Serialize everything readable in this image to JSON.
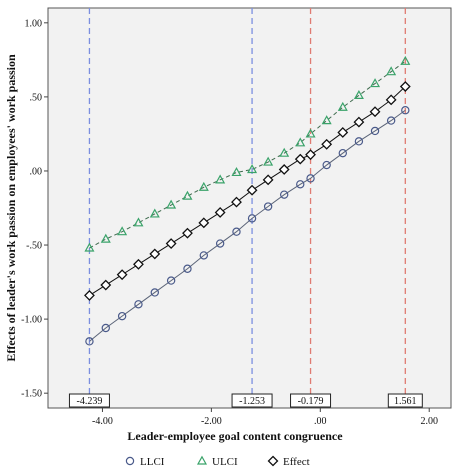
{
  "chart_data": {
    "type": "line",
    "xlabel": "Leader-employee goal content congruence",
    "ylabel": "Effects of leader's work passion on employees' work passion",
    "xlim": [
      -5.0,
      2.4
    ],
    "ylim": [
      -1.6,
      1.1
    ],
    "x_ticks": [
      -4.0,
      -2.0,
      0.0,
      2.0
    ],
    "x_tick_labels": [
      "-4.00",
      "-2.00",
      ".00",
      "2.00"
    ],
    "y_ticks": [
      1.0,
      0.5,
      0.0,
      -0.5,
      -1.0,
      -1.5
    ],
    "y_tick_labels": [
      "1.00",
      ".50",
      ".00",
      "-.50",
      "-1.00",
      "-1.50"
    ],
    "grid": false,
    "legend_position": "bottom",
    "x": [
      -4.239,
      -3.939,
      -3.639,
      -3.339,
      -3.039,
      -2.739,
      -2.439,
      -2.139,
      -1.839,
      -1.539,
      -1.253,
      -0.958,
      -0.663,
      -0.368,
      -0.179,
      0.117,
      0.413,
      0.709,
      1.005,
      1.301,
      1.561
    ],
    "series": [
      {
        "name": "LLCI",
        "marker": "circle",
        "color": "#4a5a8a",
        "line_color": "#5b6478",
        "values": [
          -1.15,
          -1.06,
          -0.98,
          -0.9,
          -0.82,
          -0.74,
          -0.66,
          -0.57,
          -0.49,
          -0.41,
          -0.32,
          -0.24,
          -0.16,
          -0.09,
          -0.05,
          0.04,
          0.12,
          0.2,
          0.27,
          0.34,
          0.41
        ]
      },
      {
        "name": "ULCI",
        "marker": "triangle",
        "color": "#3aa36a",
        "line_color": "#3f6b4e",
        "values": [
          -0.52,
          -0.46,
          -0.41,
          -0.35,
          -0.29,
          -0.23,
          -0.17,
          -0.11,
          -0.06,
          -0.01,
          0.01,
          0.06,
          0.12,
          0.19,
          0.25,
          0.34,
          0.43,
          0.51,
          0.59,
          0.67,
          0.74
        ]
      },
      {
        "name": "Effect",
        "marker": "diamond",
        "color": "#111111",
        "line_color": "#111111",
        "values": [
          -0.84,
          -0.77,
          -0.7,
          -0.63,
          -0.56,
          -0.49,
          -0.42,
          -0.35,
          -0.28,
          -0.21,
          -0.13,
          -0.06,
          0.01,
          0.08,
          0.11,
          0.18,
          0.26,
          0.33,
          0.4,
          0.48,
          0.57
        ]
      }
    ],
    "reference_lines": [
      {
        "x": -4.239,
        "label": "-4.239",
        "color": "#7b8fe0"
      },
      {
        "x": -1.253,
        "label": "-1.253",
        "color": "#7b8fe0"
      },
      {
        "x": -0.179,
        "label": "-0.179",
        "color": "#e07b72"
      },
      {
        "x": 1.561,
        "label": "1.561",
        "color": "#e07b72"
      }
    ],
    "plot_background": "#f2f2f2"
  }
}
